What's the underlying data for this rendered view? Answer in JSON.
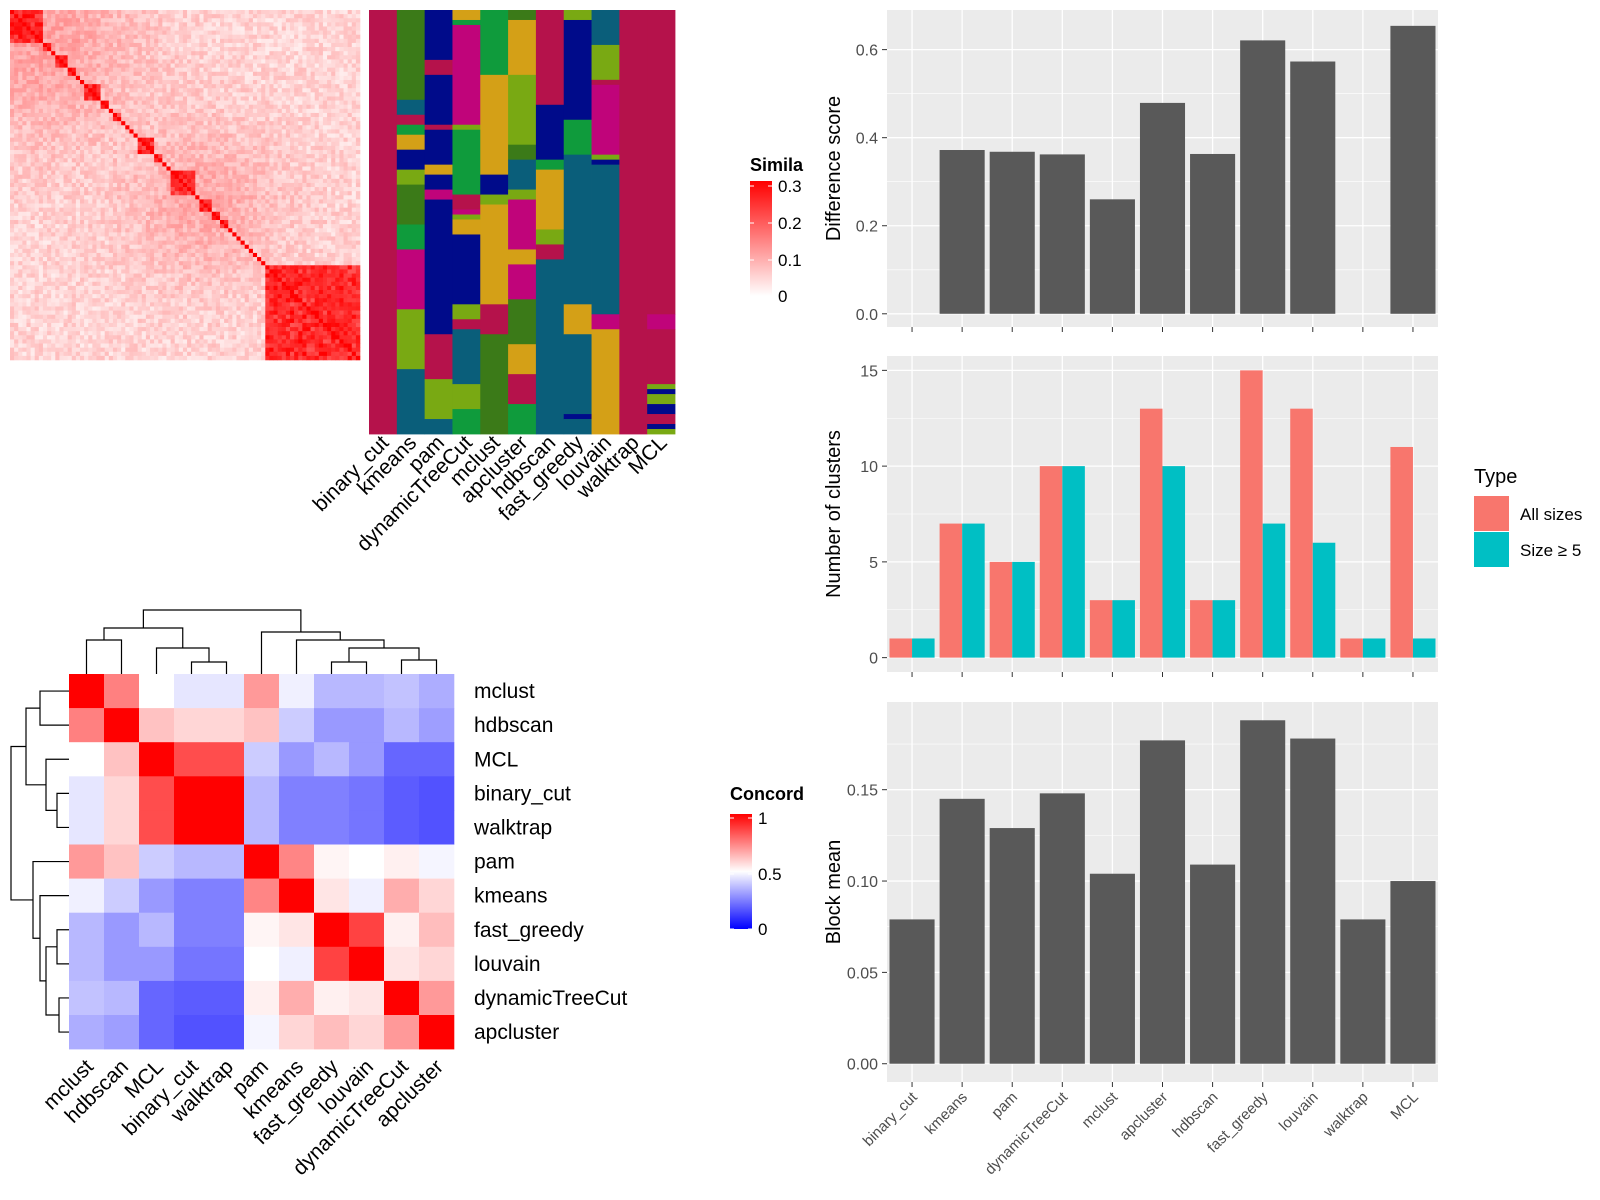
{
  "methods": [
    "binary_cut",
    "kmeans",
    "pam",
    "dynamicTreeCut",
    "mclust",
    "apcluster",
    "hdbscan",
    "fast_greedy",
    "louvain",
    "walktrap",
    "MCL"
  ],
  "colors": {
    "bar": "#595959",
    "panel_bg": "#ebebeb",
    "all_sizes": "#F8766D",
    "size_ge5": "#00BFC4",
    "heat_high": "#ff0000",
    "heat_mid": "#ffffff",
    "heat_low": "#0000ff",
    "cluster_palette": [
      "#b5124b",
      "#000b8a",
      "#79a913",
      "#d4a017",
      "#0a5e7a",
      "#0f9b3c",
      "#c0047a",
      "#3b7a18"
    ]
  },
  "similarity_legend": {
    "title": "Simila",
    "ticks": [
      "0.3",
      "0.2",
      "0.1",
      "0"
    ]
  },
  "concordance_legend": {
    "title": "Concord",
    "ticks": [
      "1",
      "0.5",
      "0"
    ]
  },
  "chart_data": [
    {
      "id": "difference",
      "type": "bar",
      "categories": [
        "binary_cut",
        "kmeans",
        "pam",
        "dynamicTreeCut",
        "mclust",
        "apcluster",
        "hdbscan",
        "fast_greedy",
        "louvain",
        "walktrap",
        "MCL"
      ],
      "values": [
        null,
        0.372,
        0.368,
        0.362,
        0.26,
        0.479,
        0.363,
        0.621,
        0.573,
        null,
        0.654
      ],
      "ylabel": "Difference score",
      "ylim": [
        -0.03,
        0.69
      ],
      "yticks": [
        0.0,
        0.2,
        0.4,
        0.6
      ],
      "ytick_labels": [
        "0.0",
        "0.2",
        "0.4",
        "0.6"
      ],
      "grid": true
    },
    {
      "id": "clusters",
      "type": "bar",
      "categories": [
        "binary_cut",
        "kmeans",
        "pam",
        "dynamicTreeCut",
        "mclust",
        "apcluster",
        "hdbscan",
        "fast_greedy",
        "louvain",
        "walktrap",
        "MCL"
      ],
      "series": [
        {
          "name": "All sizes",
          "values": [
            1,
            7,
            5,
            10,
            3,
            13,
            3,
            15,
            13,
            1,
            11
          ]
        },
        {
          "name": "Size ≥ 5",
          "values": [
            1,
            7,
            5,
            10,
            3,
            10,
            3,
            7,
            6,
            1,
            1
          ]
        }
      ],
      "ylabel": "Number of clusters",
      "ylim": [
        -0.75,
        15.75
      ],
      "yticks": [
        0,
        5,
        10,
        15
      ],
      "ytick_labels": [
        "0",
        "5",
        "10",
        "15"
      ],
      "legend": {
        "title": "Type",
        "placement": "right"
      },
      "grid": true
    },
    {
      "id": "block_mean",
      "type": "bar",
      "categories": [
        "binary_cut",
        "kmeans",
        "pam",
        "dynamicTreeCut",
        "mclust",
        "apcluster",
        "hdbscan",
        "fast_greedy",
        "louvain",
        "walktrap",
        "MCL"
      ],
      "values": [
        0.079,
        0.145,
        0.129,
        0.148,
        0.104,
        0.177,
        0.109,
        0.188,
        0.178,
        0.079,
        0.1
      ],
      "ylabel": "Block mean",
      "ylim": [
        -0.01,
        0.198
      ],
      "yticks": [
        0.0,
        0.05,
        0.1,
        0.15
      ],
      "ytick_labels": [
        "0.00",
        "0.05",
        "0.10",
        "0.15"
      ],
      "grid": true
    },
    {
      "id": "concordance",
      "type": "heatmap",
      "rows": [
        "mclust",
        "hdbscan",
        "MCL",
        "binary_cut",
        "walktrap",
        "pam",
        "kmeans",
        "fast_greedy",
        "louvain",
        "dynamicTreeCut",
        "apcluster"
      ],
      "cols": [
        "mclust",
        "hdbscan",
        "MCL",
        "binary_cut",
        "walktrap",
        "pam",
        "kmeans",
        "fast_greedy",
        "louvain",
        "dynamicTreeCut",
        "apcluster"
      ],
      "values": [
        [
          1.0,
          0.75,
          0.5,
          0.45,
          0.45,
          0.7,
          0.47,
          0.36,
          0.36,
          0.38,
          0.34
        ],
        [
          0.75,
          1.0,
          0.62,
          0.58,
          0.58,
          0.62,
          0.4,
          0.3,
          0.3,
          0.36,
          0.31
        ],
        [
          0.5,
          0.62,
          1.0,
          0.85,
          0.85,
          0.4,
          0.3,
          0.36,
          0.3,
          0.2,
          0.2
        ],
        [
          0.45,
          0.58,
          0.85,
          1.0,
          1.0,
          0.36,
          0.25,
          0.25,
          0.23,
          0.18,
          0.16
        ],
        [
          0.45,
          0.58,
          0.85,
          1.0,
          1.0,
          0.36,
          0.25,
          0.25,
          0.23,
          0.18,
          0.16
        ],
        [
          0.7,
          0.62,
          0.4,
          0.36,
          0.36,
          1.0,
          0.74,
          0.52,
          0.5,
          0.53,
          0.48
        ],
        [
          0.47,
          0.4,
          0.3,
          0.25,
          0.25,
          0.74,
          1.0,
          0.55,
          0.47,
          0.66,
          0.58
        ],
        [
          0.36,
          0.3,
          0.36,
          0.25,
          0.25,
          0.52,
          0.55,
          1.0,
          0.87,
          0.53,
          0.63
        ],
        [
          0.36,
          0.3,
          0.3,
          0.23,
          0.23,
          0.5,
          0.47,
          0.87,
          1.0,
          0.55,
          0.58
        ],
        [
          0.38,
          0.36,
          0.2,
          0.18,
          0.18,
          0.53,
          0.66,
          0.53,
          0.55,
          1.0,
          0.7
        ],
        [
          0.34,
          0.31,
          0.2,
          0.16,
          0.16,
          0.48,
          0.58,
          0.63,
          0.58,
          0.7,
          1.0
        ]
      ],
      "legend_title": "Concord",
      "range": [
        0,
        1
      ]
    },
    {
      "id": "similarity",
      "type": "heatmap",
      "block_sizes": [
        8,
        2,
        1,
        3,
        2,
        1,
        1,
        4,
        2,
        1,
        2,
        1,
        1,
        1,
        1,
        4,
        2,
        1,
        1,
        6,
        1,
        3,
        2,
        2,
        1,
        1,
        1,
        1,
        1,
        1,
        1,
        1,
        1,
        1
      ],
      "range": [
        0,
        0.3
      ],
      "legend_title": "Simila"
    }
  ]
}
